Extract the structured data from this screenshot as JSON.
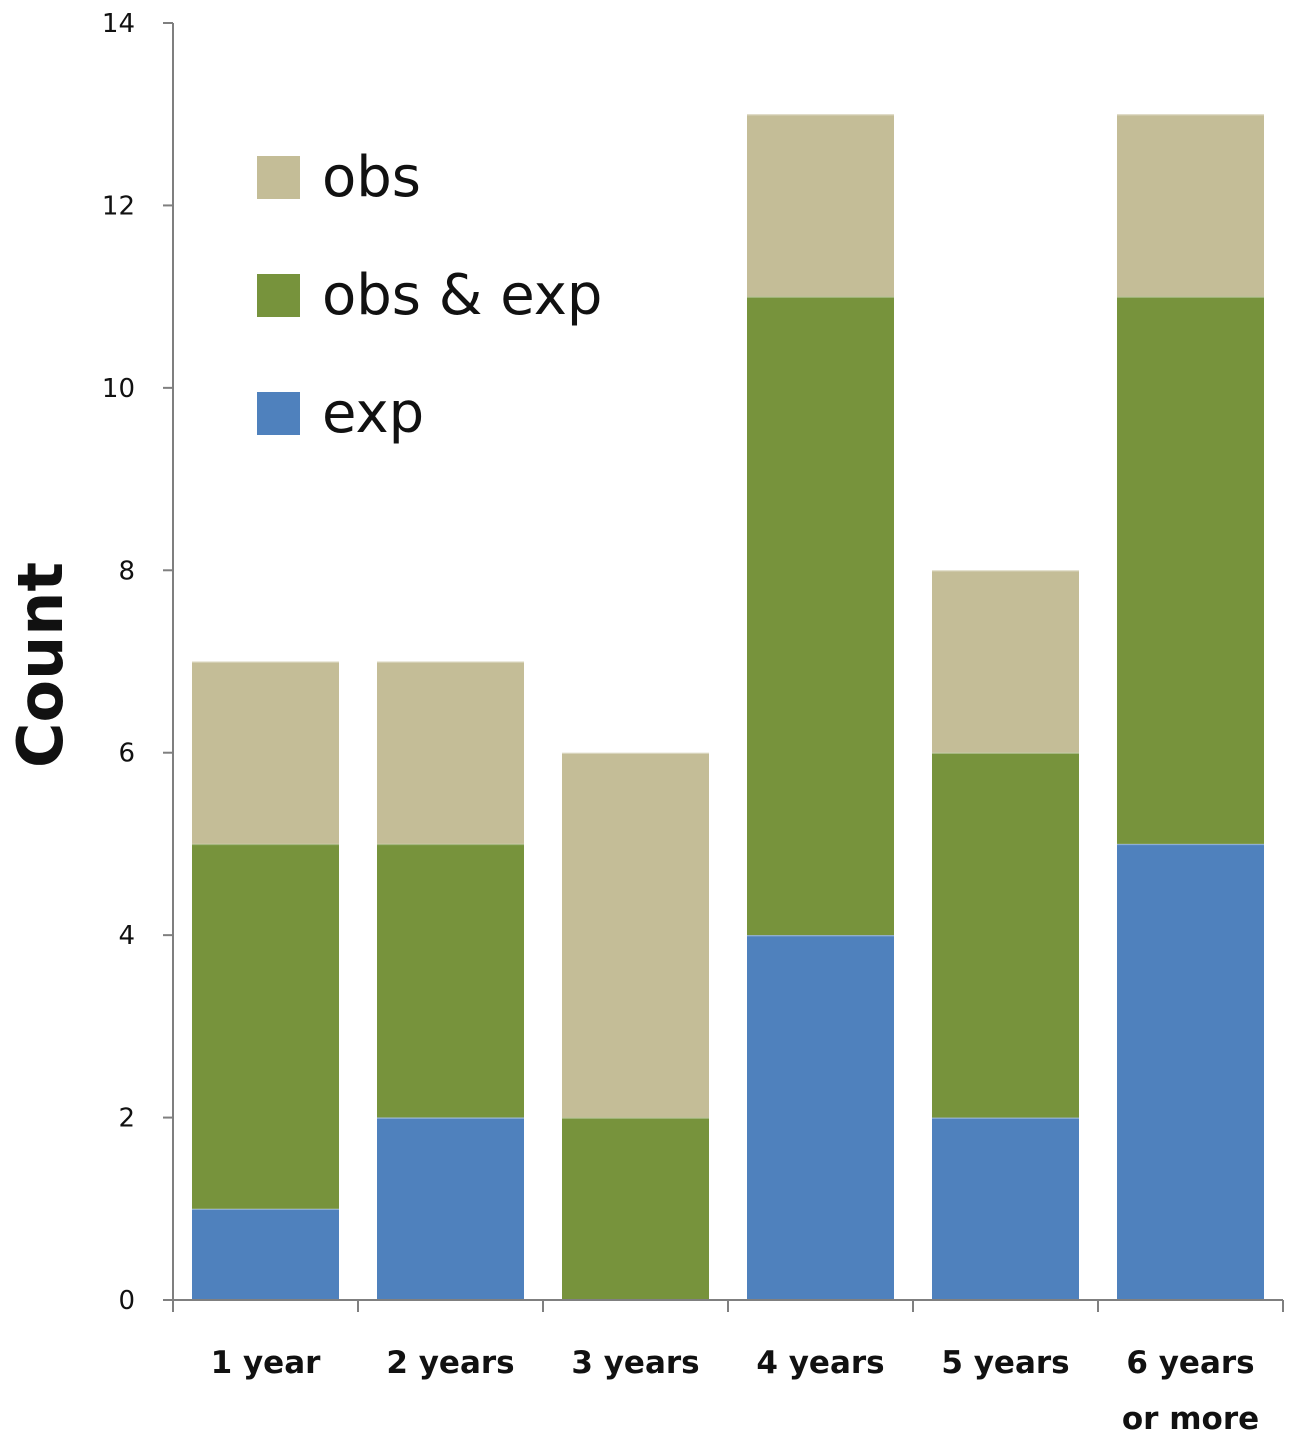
{
  "chart_data": {
    "type": "bar",
    "stacked": true,
    "ylabel": "Count",
    "ylim": [
      0,
      14
    ],
    "yticks": [
      0,
      2,
      4,
      6,
      8,
      10,
      12,
      14
    ],
    "grid": false,
    "legend_position": "top-left",
    "categories": [
      [
        "1 year"
      ],
      [
        "2 years"
      ],
      [
        "3 years"
      ],
      [
        "4 years"
      ],
      [
        "5 years"
      ],
      [
        "6 years",
        "or more"
      ]
    ],
    "series": [
      {
        "name": "exp",
        "color": "#4F81BD",
        "values": [
          1,
          2,
          0,
          4,
          2,
          5
        ]
      },
      {
        "name": "obs & exp",
        "color": "#77933C",
        "values": [
          4,
          3,
          2,
          7,
          4,
          6
        ]
      },
      {
        "name": "obs",
        "color": "#C4BD97",
        "values": [
          2,
          2,
          4,
          2,
          2,
          2
        ]
      }
    ],
    "legend_order": [
      "obs",
      "obs & exp",
      "exp"
    ]
  }
}
